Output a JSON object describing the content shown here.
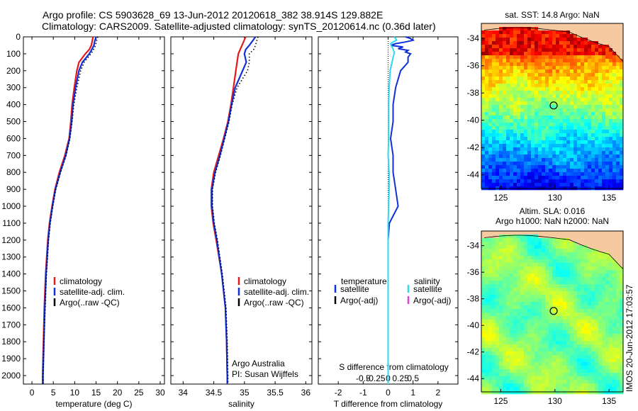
{
  "header": {
    "line1": "Argo profile: CS 5903628_69 13-Jun-2012 20120618_382 38.914S 129.882E",
    "line2": "Climatology: CARS2009. Satellite-adjusted climatology: synTS_20120614.nc (0.36d later)"
  },
  "side_note": "IMOS 20-Jun-2012 17:03:57",
  "credit": {
    "line1": "Argo Australia",
    "line2": "PI: Susan Wijffels"
  },
  "colors": {
    "climatology": "#e31a1c",
    "satellite": "#1030d8",
    "argo": "#000000",
    "satellite_s": "#30d8f0",
    "argo_s": "#e040e0",
    "land": "#f6c9a0"
  },
  "chart_data": [
    {
      "type": "line",
      "panel": "temperature",
      "xlabel": "temperature (deg C)",
      "xlim": [
        -2,
        31
      ],
      "xticks": [
        0,
        5,
        10,
        15,
        20,
        25,
        30
      ],
      "ylim": [
        2050,
        0
      ],
      "yticks": [
        0,
        100,
        200,
        300,
        400,
        500,
        600,
        700,
        800,
        900,
        1000,
        1100,
        1200,
        1300,
        1400,
        1500,
        1600,
        1700,
        1800,
        1900,
        2000
      ],
      "depth": [
        0,
        25,
        50,
        75,
        100,
        150,
        200,
        300,
        400,
        500,
        600,
        700,
        800,
        900,
        1000,
        1100,
        1200,
        1400,
        1600,
        1800,
        2000,
        2050
      ],
      "series": [
        {
          "name": "climatology",
          "key": "climatology",
          "values": [
            14.3,
            14.1,
            13.9,
            13.4,
            12.5,
            11.0,
            10.5,
            9.9,
            9.4,
            9.1,
            8.7,
            7.7,
            6.4,
            5.4,
            4.7,
            4.1,
            3.7,
            3.2,
            2.9,
            2.7,
            2.5,
            2.5
          ]
        },
        {
          "name": "satellite-adj. clim.",
          "key": "satellite",
          "values": [
            15.0,
            14.7,
            14.5,
            14.0,
            13.4,
            11.8,
            11.0,
            10.2,
            9.6,
            9.3,
            8.8,
            7.9,
            6.6,
            5.5,
            4.8,
            4.2,
            3.8,
            3.3,
            3.0,
            2.8,
            2.6,
            2.6
          ]
        },
        {
          "name": "Argo(..raw -QC)",
          "key": "argo",
          "dotted": true,
          "values": [
            15.4,
            15.1,
            14.9,
            14.4,
            13.8,
            12.2,
            11.4,
            10.5,
            9.8,
            9.4,
            8.9,
            8.0,
            6.7,
            5.6,
            4.9,
            4.3,
            3.9,
            3.4,
            3.1,
            2.8,
            2.6,
            2.6
          ]
        }
      ]
    },
    {
      "type": "line",
      "panel": "salinity",
      "xlabel": "salinity",
      "xlim": [
        33.8,
        36.1
      ],
      "xticks": [
        34,
        34.5,
        35,
        35.5,
        36
      ],
      "ylim": [
        2050,
        0
      ],
      "depth": [
        0,
        25,
        50,
        75,
        100,
        150,
        200,
        300,
        400,
        500,
        600,
        700,
        800,
        900,
        1000,
        1100,
        1200,
        1400,
        1600,
        1800,
        2000,
        2050
      ],
      "series": [
        {
          "name": "climatology",
          "key": "climatology",
          "values": [
            35.02,
            34.99,
            34.96,
            34.93,
            34.9,
            34.88,
            34.86,
            34.82,
            34.78,
            34.73,
            34.66,
            34.58,
            34.5,
            34.46,
            34.46,
            34.49,
            34.54,
            34.63,
            34.69,
            34.71,
            34.72,
            34.72
          ]
        },
        {
          "name": "satellite-adj. clim.",
          "key": "satellite",
          "values": [
            35.18,
            35.13,
            35.08,
            35.02,
            35.0,
            35.03,
            34.97,
            34.85,
            34.79,
            34.74,
            34.67,
            34.6,
            34.52,
            34.47,
            34.47,
            34.5,
            34.55,
            34.63,
            34.69,
            34.71,
            34.72,
            34.72
          ]
        },
        {
          "name": "Argo(..raw -QC)",
          "key": "argo",
          "dotted": true,
          "values": [
            35.22,
            35.2,
            35.18,
            35.15,
            35.08,
            35.08,
            35.05,
            34.88,
            34.8,
            34.75,
            34.68,
            34.61,
            34.53,
            34.48,
            34.48,
            34.51,
            34.56,
            34.64,
            34.7,
            34.72,
            34.73,
            34.73
          ]
        }
      ]
    },
    {
      "type": "line",
      "panel": "difference",
      "xlabel": "T difference from climatology",
      "xlabel_top": "S difference from climatology",
      "xlim": [
        -2.8,
        2.8
      ],
      "xticks": [
        -2,
        -1,
        0,
        1,
        2
      ],
      "xtick_labels": [
        "-2",
        "-1",
        "0",
        "1",
        "2"
      ],
      "s_ticks": [
        -0.5,
        -0.25,
        0,
        0.25,
        0.5
      ],
      "s_tick_labels": [
        "-0.5",
        "-0.25",
        "0",
        "0.25",
        "0.5"
      ],
      "s_scale": 2.0,
      "ylim": [
        2050,
        0
      ],
      "depth": [
        0,
        10,
        20,
        30,
        40,
        50,
        60,
        70,
        80,
        90,
        100,
        120,
        150,
        200,
        300,
        400,
        500,
        600,
        700,
        800,
        900,
        1000,
        1100,
        1200,
        1400,
        1600,
        1800,
        2000,
        2050
      ],
      "legend_titles": [
        "temperature",
        "salinity"
      ],
      "series": [
        {
          "name": "satellite",
          "key": "satellite",
          "group": "temperature",
          "values": [
            0.7,
            0.9,
            1.0,
            0.7,
            0.3,
            0.1,
            0.6,
            0.4,
            0.8,
            0.7,
            0.9,
            0.8,
            0.8,
            0.5,
            0.3,
            0.2,
            0.2,
            0.1,
            0.2,
            0.2,
            0.3,
            0.4,
            0.05,
            0.0,
            0.0,
            0.0,
            0.0,
            0.0,
            0.0
          ]
        },
        {
          "name": "Argo(-adj)",
          "key": "argo",
          "group": "temperature",
          "values": []
        },
        {
          "name": "satellite",
          "key": "satellite_s",
          "group": "salinity",
          "values": [
            0.12,
            0.15,
            0.17,
            0.1,
            0.05,
            0.06,
            0.08,
            0.1,
            0.11,
            0.12,
            0.12,
            0.1,
            0.08,
            0.04,
            0.02,
            0.01,
            0.01,
            0.01,
            0.0,
            0.02,
            0.02,
            0.01,
            0.0,
            0.0,
            0.0,
            0.0,
            0.0,
            0.0,
            0.0
          ]
        },
        {
          "name": "Argo(-adj)",
          "key": "argo_s",
          "group": "salinity",
          "values": []
        }
      ]
    },
    {
      "type": "heatmap",
      "panel": "sst_map",
      "title": "sat. SST: 14.8 Argo: NaN",
      "xlim": [
        123.2,
        136.3
      ],
      "ylim": [
        -45.0,
        -32.9
      ],
      "xticks": [
        125,
        130,
        135
      ],
      "yticks": [
        -34,
        -36,
        -38,
        -40,
        -42,
        -44
      ],
      "marker": {
        "lon": 129.882,
        "lat": -38.914
      },
      "colorscale": "jet",
      "value_range": [
        8,
        18
      ]
    },
    {
      "type": "heatmap",
      "panel": "sla_map",
      "title": "Altim. SLA: 0.016",
      "subtitle": "Argo h1000: NaN h2000: NaN",
      "xlim": [
        123.2,
        136.3
      ],
      "ylim": [
        -45.0,
        -32.9
      ],
      "xticks": [
        125,
        130,
        135
      ],
      "yticks": [
        -34,
        -36,
        -38,
        -40,
        -42,
        -44
      ],
      "marker": {
        "lon": 129.882,
        "lat": -38.914
      },
      "colorscale": "jet"
    }
  ]
}
